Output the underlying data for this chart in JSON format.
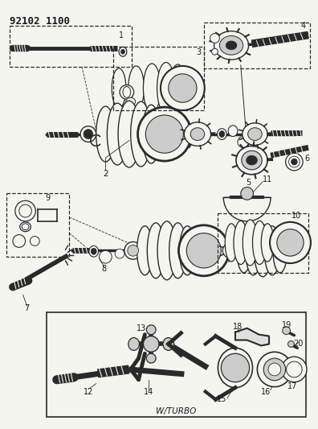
{
  "background_color": "#f5f5f0",
  "fig_width": 3.96,
  "fig_height": 5.33,
  "dpi": 100,
  "header": "92102 1100",
  "wturbo": "W/TURBO"
}
